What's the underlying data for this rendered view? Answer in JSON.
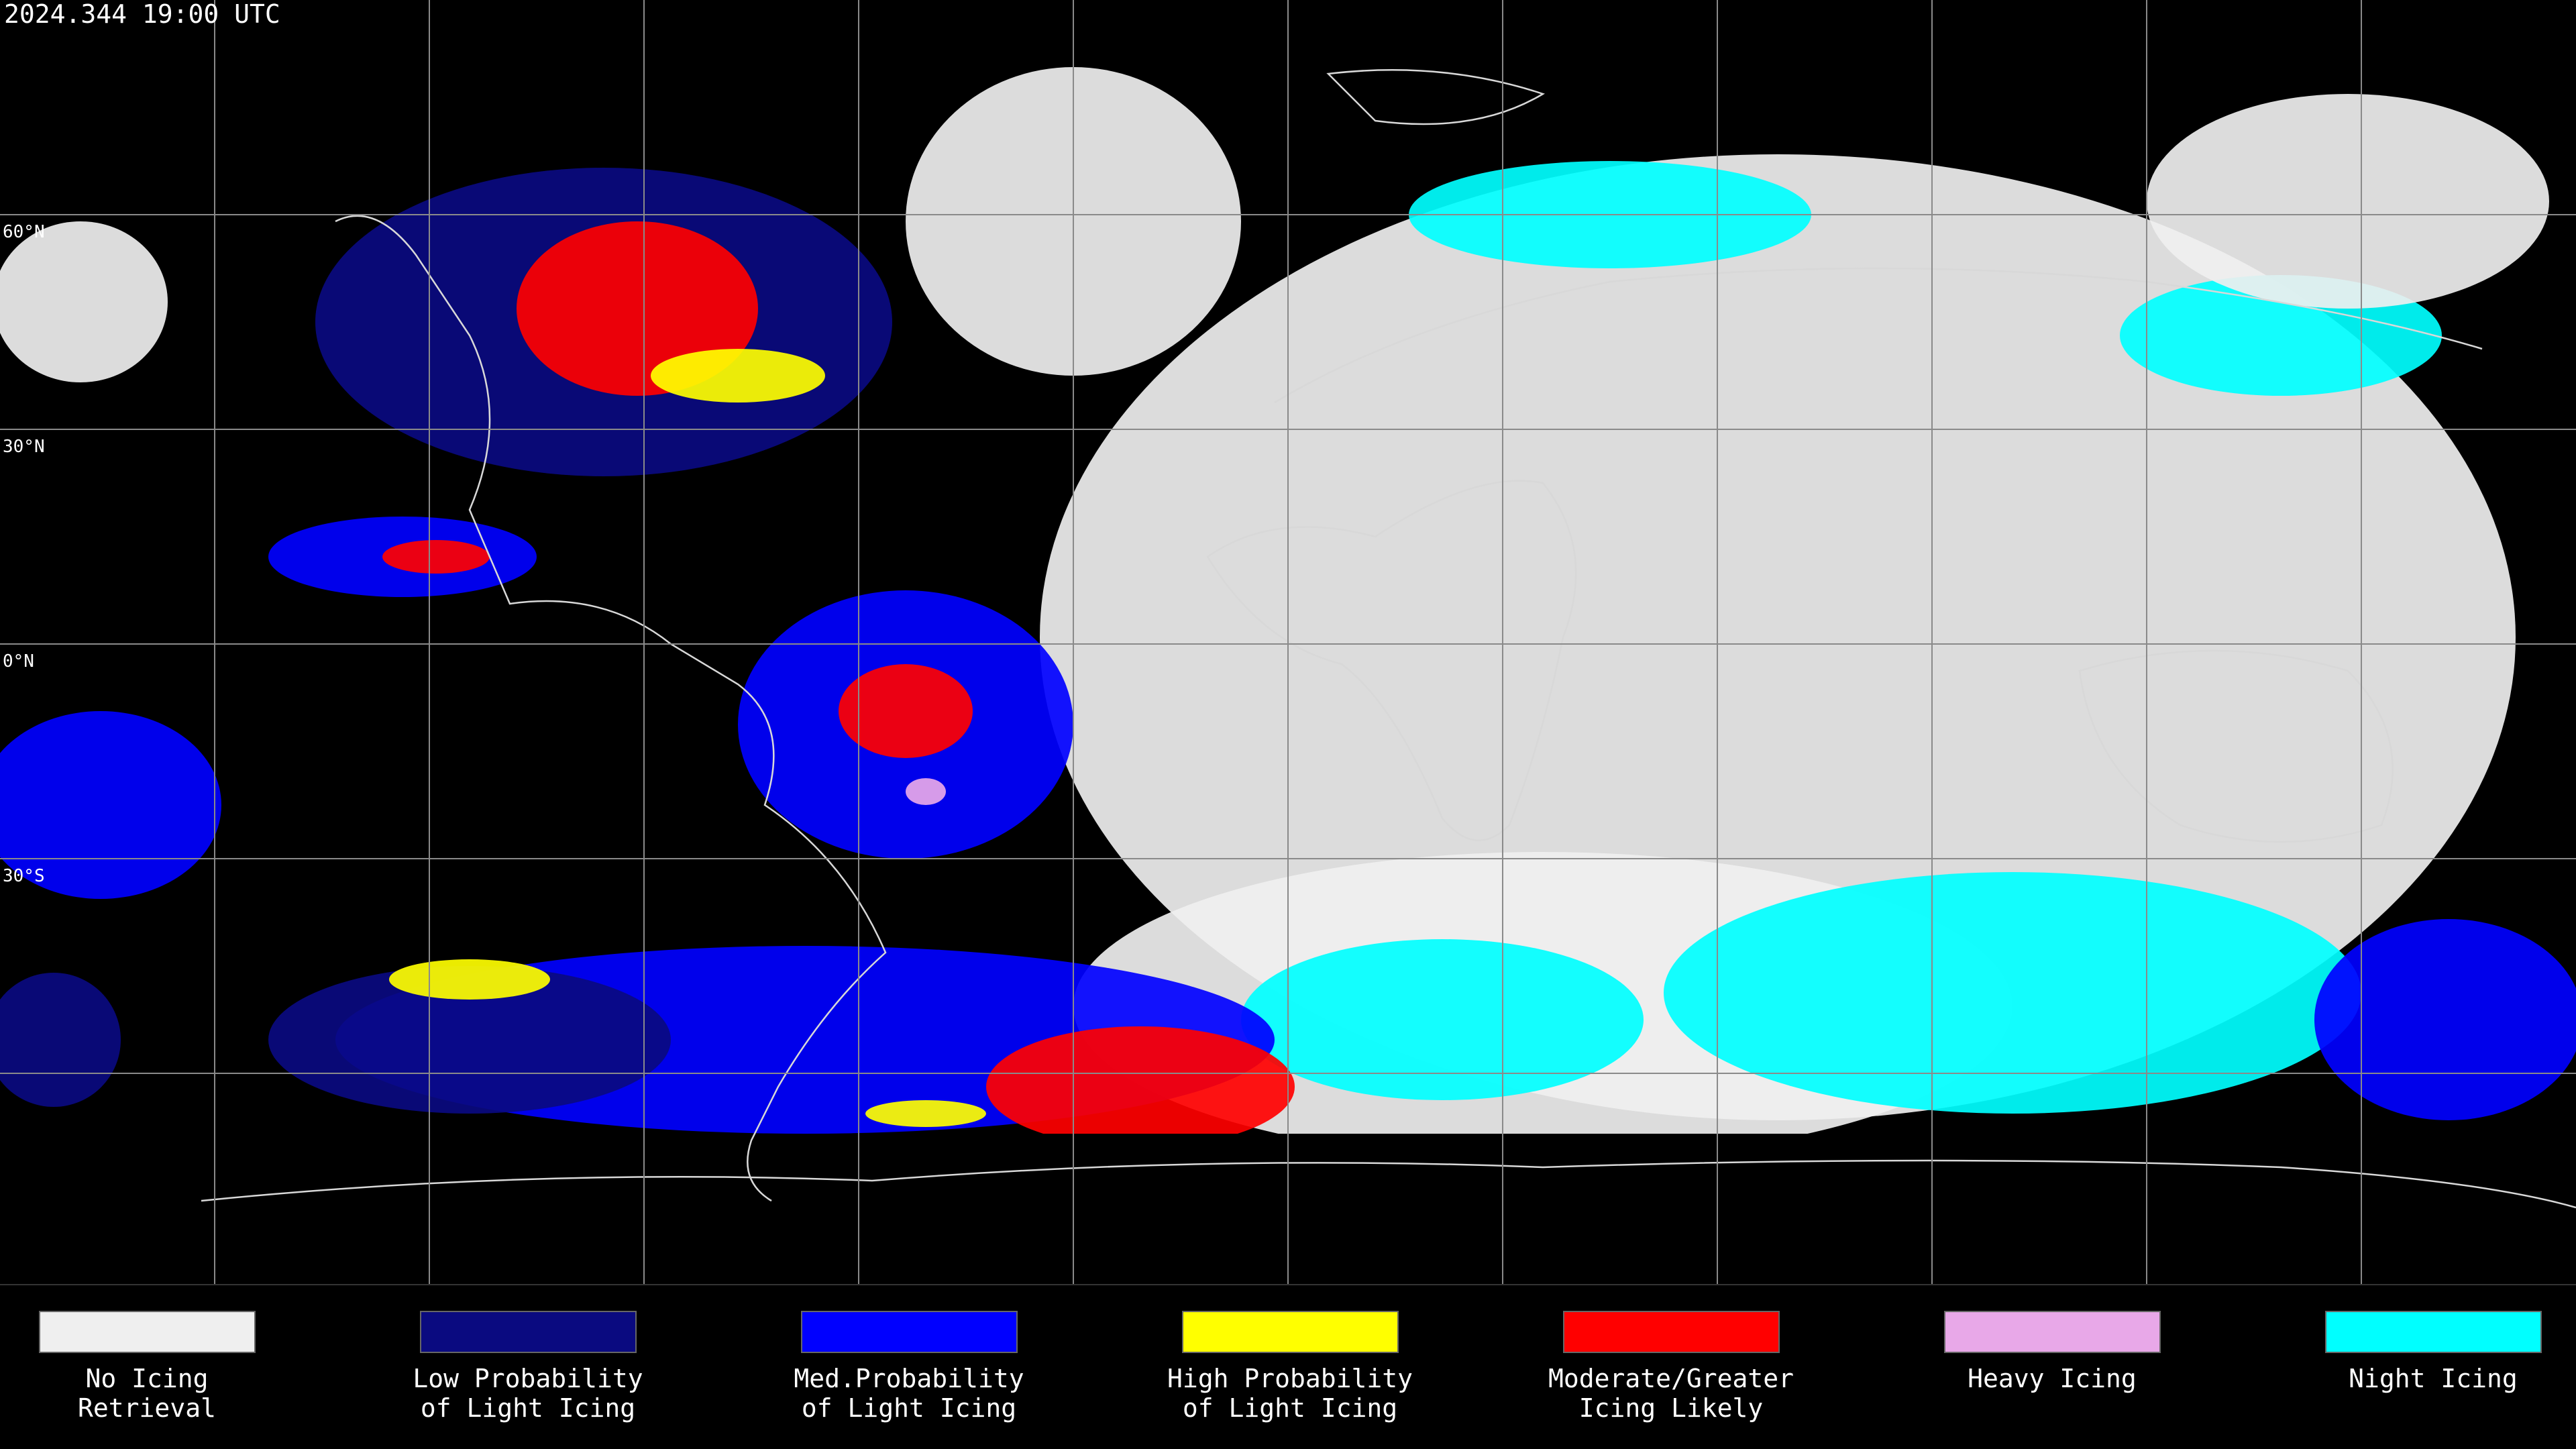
{
  "header": {
    "title": "2024.344 19:00 UTC"
  },
  "map": {
    "lat_labels": [
      "60°N",
      "30°N",
      "0°N",
      "30°S"
    ]
  },
  "legend": [
    {
      "color": "#efefef",
      "lines": [
        "No Icing",
        "Retrieval"
      ]
    },
    {
      "color": "#0a0a80",
      "lines": [
        "Low Probability",
        "of Light Icing"
      ]
    },
    {
      "color": "#0000ff",
      "lines": [
        "Med.Probability",
        "of Light Icing"
      ]
    },
    {
      "color": "#ffff00",
      "lines": [
        "High Probability",
        "of Light Icing"
      ]
    },
    {
      "color": "#ff0000",
      "lines": [
        "Moderate/Greater",
        "Icing Likely"
      ]
    },
    {
      "color": "#e8a8e8",
      "lines": [
        "Heavy Icing",
        ""
      ]
    },
    {
      "color": "#00ffff",
      "lines": [
        "Night Icing",
        ""
      ]
    }
  ]
}
